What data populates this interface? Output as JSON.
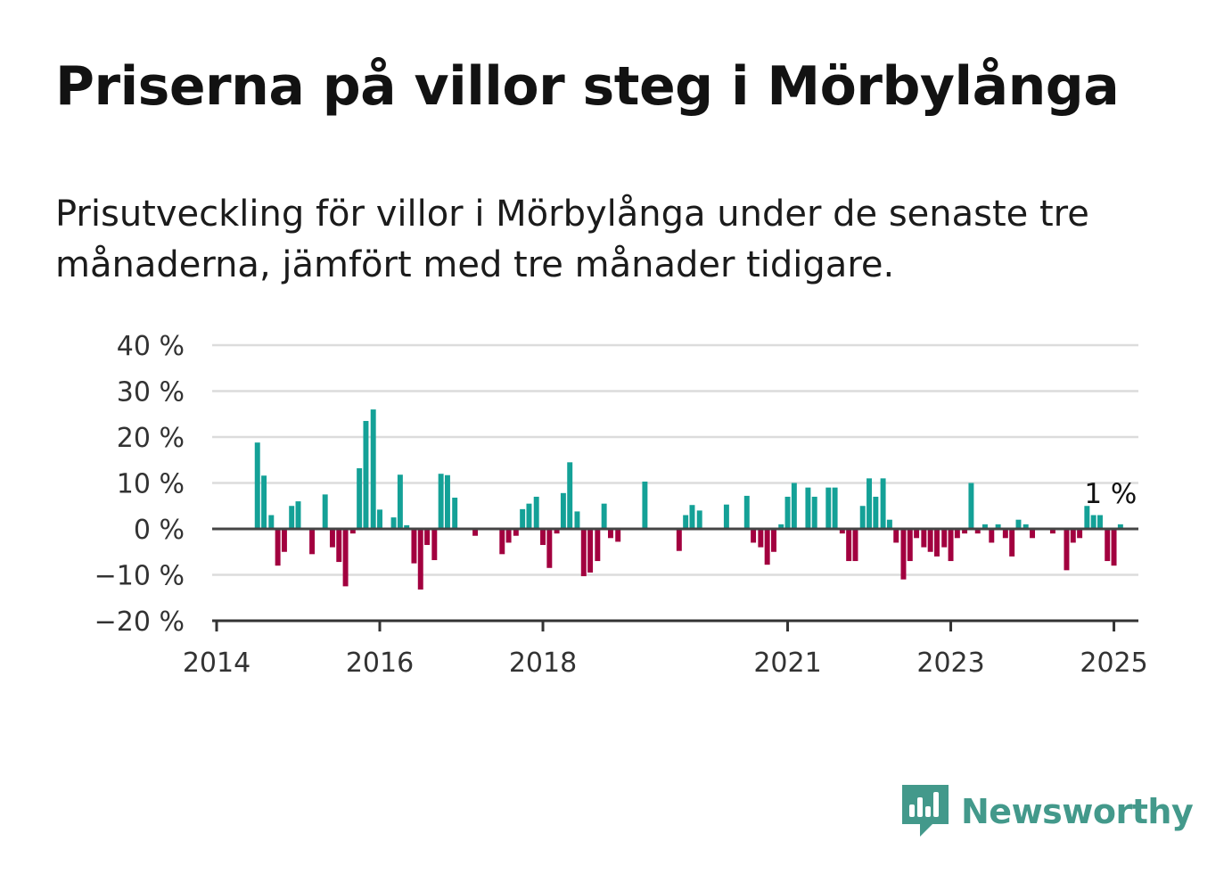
{
  "title": "Priserna på villor steg i Mörbylånga",
  "subtitle": "Prisutveckling för villor i Mörbylånga under de senaste tre månaderna, jämfört med tre månader tidigare.",
  "brand": {
    "name": "Newsworthy",
    "icon": "bar-chart-speech-bubble-icon",
    "color": "#43998b"
  },
  "colors": {
    "positive": "#14a197",
    "negative": "#a2003f",
    "grid": "#dcdcdc",
    "zero_line": "#444444"
  },
  "chart_data": {
    "type": "bar",
    "ylim": [
      -20,
      40
    ],
    "yticks": [
      -20,
      -10,
      0,
      10,
      20,
      30,
      40
    ],
    "ytick_labels": [
      "−20 %",
      "−10 %",
      "0 %",
      "10 %",
      "20 %",
      "30 %",
      "40 %"
    ],
    "xticks": [
      2014,
      2016,
      2018,
      2021,
      2023,
      2025
    ],
    "xtick_labels": [
      "2014",
      "2016",
      "2018",
      "2021",
      "2023",
      "2025"
    ],
    "grid": true,
    "annotation": {
      "text": "1 %",
      "x": 2024.96,
      "y": 1
    },
    "points": [
      {
        "x": 2014.5,
        "y": 18.8
      },
      {
        "x": 2014.58,
        "y": 11.6
      },
      {
        "x": 2014.67,
        "y": 3.0
      },
      {
        "x": 2014.75,
        "y": -8.0
      },
      {
        "x": 2014.83,
        "y": -5.0
      },
      {
        "x": 2014.92,
        "y": 5.0
      },
      {
        "x": 2015.0,
        "y": 6.0
      },
      {
        "x": 2015.17,
        "y": -5.5
      },
      {
        "x": 2015.33,
        "y": 7.5
      },
      {
        "x": 2015.42,
        "y": -4.0
      },
      {
        "x": 2015.5,
        "y": -7.2
      },
      {
        "x": 2015.58,
        "y": -12.5
      },
      {
        "x": 2015.67,
        "y": -1.0
      },
      {
        "x": 2015.75,
        "y": 13.2
      },
      {
        "x": 2015.83,
        "y": 23.5
      },
      {
        "x": 2015.92,
        "y": 26.0
      },
      {
        "x": 2016.0,
        "y": 4.2
      },
      {
        "x": 2016.17,
        "y": 2.5
      },
      {
        "x": 2016.25,
        "y": 11.8
      },
      {
        "x": 2016.33,
        "y": 0.8
      },
      {
        "x": 2016.42,
        "y": -7.5
      },
      {
        "x": 2016.5,
        "y": -13.2
      },
      {
        "x": 2016.58,
        "y": -3.5
      },
      {
        "x": 2016.67,
        "y": -6.8
      },
      {
        "x": 2016.75,
        "y": 12.0
      },
      {
        "x": 2016.83,
        "y": 11.7
      },
      {
        "x": 2016.92,
        "y": 6.8
      },
      {
        "x": 2017.17,
        "y": -1.5
      },
      {
        "x": 2017.5,
        "y": -5.5
      },
      {
        "x": 2017.58,
        "y": -3.0
      },
      {
        "x": 2017.67,
        "y": -1.5
      },
      {
        "x": 2017.75,
        "y": 4.3
      },
      {
        "x": 2017.83,
        "y": 5.5
      },
      {
        "x": 2017.92,
        "y": 7.0
      },
      {
        "x": 2018.0,
        "y": -3.5
      },
      {
        "x": 2018.08,
        "y": -8.5
      },
      {
        "x": 2018.17,
        "y": -1.0
      },
      {
        "x": 2018.25,
        "y": 7.8
      },
      {
        "x": 2018.33,
        "y": 14.5
      },
      {
        "x": 2018.42,
        "y": 3.8
      },
      {
        "x": 2018.5,
        "y": -10.3
      },
      {
        "x": 2018.58,
        "y": -9.5
      },
      {
        "x": 2018.67,
        "y": -7.0
      },
      {
        "x": 2018.75,
        "y": 5.5
      },
      {
        "x": 2018.83,
        "y": -2.0
      },
      {
        "x": 2018.92,
        "y": -2.8
      },
      {
        "x": 2019.25,
        "y": 10.3
      },
      {
        "x": 2019.67,
        "y": -4.8
      },
      {
        "x": 2019.75,
        "y": 3.0
      },
      {
        "x": 2019.83,
        "y": 5.2
      },
      {
        "x": 2019.92,
        "y": 4.0
      },
      {
        "x": 2020.25,
        "y": 5.3
      },
      {
        "x": 2020.5,
        "y": 7.2
      },
      {
        "x": 2020.58,
        "y": -3.0
      },
      {
        "x": 2020.67,
        "y": -4.0
      },
      {
        "x": 2020.75,
        "y": -7.8
      },
      {
        "x": 2020.83,
        "y": -5.0
      },
      {
        "x": 2020.92,
        "y": 1.0
      },
      {
        "x": 2021.0,
        "y": 7.0
      },
      {
        "x": 2021.08,
        "y": 10.0
      },
      {
        "x": 2021.25,
        "y": 9.0
      },
      {
        "x": 2021.33,
        "y": 7.0
      },
      {
        "x": 2021.5,
        "y": 9.0
      },
      {
        "x": 2021.58,
        "y": 9.0
      },
      {
        "x": 2021.67,
        "y": -1.0
      },
      {
        "x": 2021.75,
        "y": -7.0
      },
      {
        "x": 2021.83,
        "y": -7.0
      },
      {
        "x": 2021.92,
        "y": 5.0
      },
      {
        "x": 2022.0,
        "y": 11.0
      },
      {
        "x": 2022.08,
        "y": 7.0
      },
      {
        "x": 2022.17,
        "y": 11.0
      },
      {
        "x": 2022.25,
        "y": 2.0
      },
      {
        "x": 2022.33,
        "y": -3.0
      },
      {
        "x": 2022.42,
        "y": -11.0
      },
      {
        "x": 2022.5,
        "y": -7.0
      },
      {
        "x": 2022.58,
        "y": -2.0
      },
      {
        "x": 2022.67,
        "y": -4.0
      },
      {
        "x": 2022.75,
        "y": -5.0
      },
      {
        "x": 2022.83,
        "y": -6.0
      },
      {
        "x": 2022.92,
        "y": -4.0
      },
      {
        "x": 2023.0,
        "y": -7.0
      },
      {
        "x": 2023.08,
        "y": -2.0
      },
      {
        "x": 2023.17,
        "y": -1.0
      },
      {
        "x": 2023.25,
        "y": 10.0
      },
      {
        "x": 2023.33,
        "y": -1.0
      },
      {
        "x": 2023.42,
        "y": 1.0
      },
      {
        "x": 2023.5,
        "y": -3.0
      },
      {
        "x": 2023.58,
        "y": 1.0
      },
      {
        "x": 2023.67,
        "y": -2.0
      },
      {
        "x": 2023.75,
        "y": -6.0
      },
      {
        "x": 2023.83,
        "y": 2.0
      },
      {
        "x": 2023.92,
        "y": 1.0
      },
      {
        "x": 2024.0,
        "y": -2.0
      },
      {
        "x": 2024.25,
        "y": -1.0
      },
      {
        "x": 2024.42,
        "y": -9.0
      },
      {
        "x": 2024.5,
        "y": -3.0
      },
      {
        "x": 2024.58,
        "y": -2.0
      },
      {
        "x": 2024.67,
        "y": 5.0
      },
      {
        "x": 2024.75,
        "y": 3.0
      },
      {
        "x": 2024.83,
        "y": 3.0
      },
      {
        "x": 2024.92,
        "y": -7.0
      },
      {
        "x": 2025.0,
        "y": -8.0
      },
      {
        "x": 2025.08,
        "y": 1.0
      }
    ]
  }
}
